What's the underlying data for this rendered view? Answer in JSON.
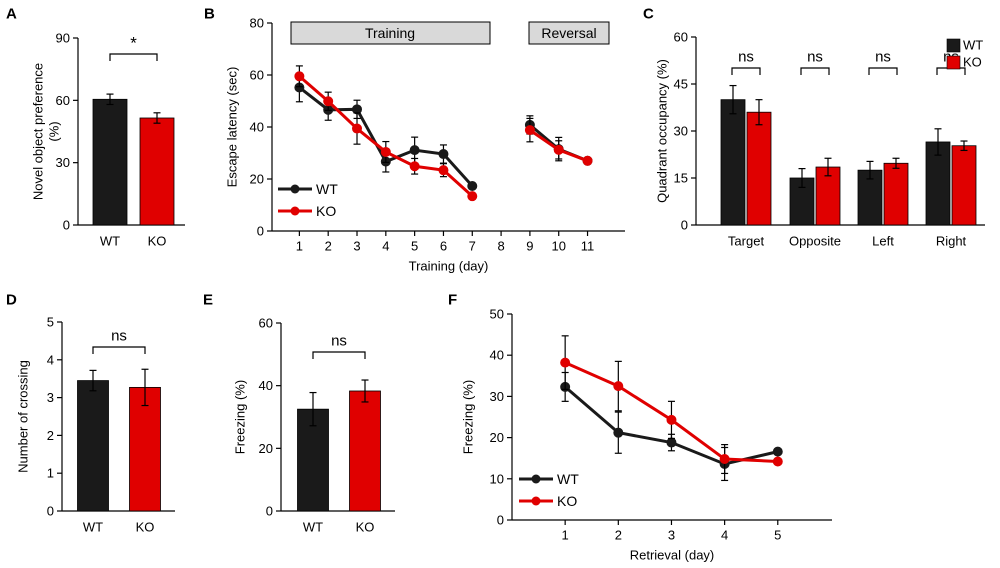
{
  "colors": {
    "wt": "#1a1a1a",
    "ko": "#e00000",
    "box_fill": "#d9d9d9"
  },
  "chart_data": [
    {
      "id": "A",
      "panel_label": "A",
      "type": "bar",
      "ylabel": [
        "Novel object preference",
        "(%)"
      ],
      "ylim": [
        0,
        90
      ],
      "yticks": [
        0,
        30,
        60,
        90
      ],
      "categories": [
        "WT",
        "KO"
      ],
      "values": [
        60.5,
        51.5
      ],
      "errors": [
        2.5,
        2.5
      ],
      "annotation": "*"
    },
    {
      "id": "B",
      "panel_label": "B",
      "type": "line",
      "title_boxes": [
        "Training",
        "Reversal"
      ],
      "xlabel": "Training (day)",
      "ylabel": "Escape latency (sec)",
      "ylim": [
        0,
        80
      ],
      "yticks": [
        0,
        20,
        40,
        60,
        80
      ],
      "xticks": [
        1,
        2,
        3,
        4,
        5,
        6,
        7,
        8,
        9,
        10,
        11
      ],
      "legend": [
        "WT",
        "KO"
      ],
      "series": [
        {
          "name": "WT",
          "segments": [
            {
              "x": [
                1,
                2,
                3,
                4,
                5,
                6,
                7
              ],
              "y": [
                55.2,
                46.6,
                46.8,
                26.7,
                31.1,
                29.6,
                17.3
              ],
              "err": [
                5.5,
                4.0,
                3.5,
                4.0,
                5.0,
                3.5,
                0
              ]
            },
            {
              "x": [
                9,
                10,
                11
              ],
              "y": [
                40.8,
                31.5,
                27.0
              ],
              "err": [
                3.5,
                4.5,
                0.8
              ]
            }
          ]
        },
        {
          "name": "KO",
          "segments": [
            {
              "x": [
                1,
                2,
                3,
                4,
                5,
                6,
                7
              ],
              "y": [
                59.5,
                49.9,
                39.4,
                30.4,
                24.9,
                23.4,
                13.4
              ],
              "err": [
                4.0,
                3.5,
                6.0,
                4.0,
                3.0,
                2.5,
                0
              ]
            },
            {
              "x": [
                9,
                10,
                11
              ],
              "y": [
                38.8,
                31.2,
                27.0
              ],
              "err": [
                4.5,
                3.5,
                0.8
              ]
            }
          ]
        }
      ]
    },
    {
      "id": "C",
      "panel_label": "C",
      "type": "bar",
      "ylabel": "Quadrant occupancy (%)",
      "ylim": [
        0,
        60
      ],
      "yticks": [
        0,
        15,
        30,
        45,
        60
      ],
      "categories": [
        "Target",
        "Opposite",
        "Left",
        "Right"
      ],
      "legend": [
        "WT",
        "KO"
      ],
      "series": [
        {
          "name": "WT",
          "values": [
            40.0,
            15.0,
            17.5,
            26.5
          ],
          "errors": [
            4.5,
            3.0,
            2.8,
            4.2
          ]
        },
        {
          "name": "KO",
          "values": [
            36.0,
            18.5,
            19.7,
            25.3
          ],
          "errors": [
            4.0,
            2.8,
            1.6,
            1.5
          ]
        }
      ],
      "annotations": [
        "ns",
        "ns",
        "ns",
        "ns"
      ]
    },
    {
      "id": "D",
      "panel_label": "D",
      "type": "bar",
      "ylabel": "Number of crossing",
      "ylim": [
        0,
        5
      ],
      "yticks": [
        0,
        1,
        2,
        3,
        4,
        5
      ],
      "categories": [
        "WT",
        "KO"
      ],
      "values": [
        3.45,
        3.27
      ],
      "errors": [
        0.27,
        0.48
      ],
      "annotation": "ns"
    },
    {
      "id": "E",
      "panel_label": "E",
      "type": "bar",
      "ylabel": "Freezing (%)",
      "ylim": [
        0,
        60
      ],
      "yticks": [
        0,
        20,
        40,
        60
      ],
      "categories": [
        "WT",
        "KO"
      ],
      "values": [
        32.5,
        38.3
      ],
      "errors": [
        5.3,
        3.5
      ],
      "annotation": "ns"
    },
    {
      "id": "F",
      "panel_label": "F",
      "type": "line",
      "xlabel": "Retrieval (day)",
      "ylabel": "Freezing (%)",
      "ylim": [
        0,
        50
      ],
      "yticks": [
        0,
        10,
        20,
        30,
        40,
        50
      ],
      "xticks": [
        1,
        2,
        3,
        4,
        5
      ],
      "legend": [
        "WT",
        "KO"
      ],
      "series": [
        {
          "name": "WT",
          "x": [
            1,
            2,
            3,
            4,
            5
          ],
          "y": [
            32.3,
            21.2,
            18.8,
            13.6,
            16.6
          ],
          "err": [
            3.5,
            5.0,
            2.0,
            4.0,
            0
          ]
        },
        {
          "name": "KO",
          "x": [
            1,
            2,
            3,
            4,
            5
          ],
          "y": [
            38.2,
            32.5,
            24.3,
            14.8,
            14.2
          ],
          "err": [
            6.5,
            6.0,
            4.5,
            3.5,
            0
          ]
        }
      ]
    }
  ]
}
